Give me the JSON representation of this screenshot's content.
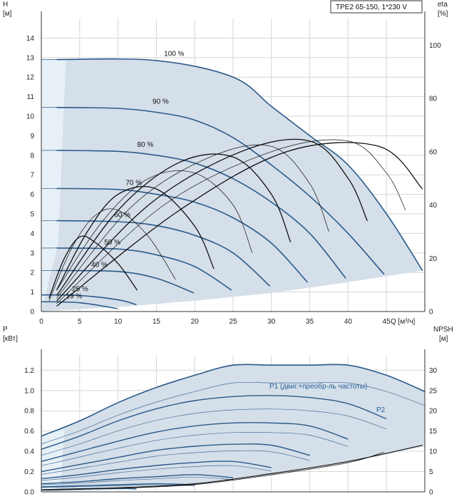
{
  "header": {
    "title": "TPE2 65-150, 1*230 V"
  },
  "colors": {
    "region_fill": "#d5dfe9",
    "region_light": "#e8f0f7",
    "main_curve": "#2a5a8a",
    "thin_curve": "#456f96",
    "eta_curve": "#111111",
    "grid": "#d6d6d6",
    "p_label": "#2a6099"
  },
  "chart_data": [
    {
      "name": "head",
      "type": "line",
      "x_label": "Q [м³/ч]",
      "y_label_top": "H",
      "y_unit": "[м]",
      "y2_label_top": "eta",
      "y2_unit": "[%]",
      "xlim": [
        0,
        50
      ],
      "ylim": [
        0,
        15
      ],
      "y2lim": [
        0,
        110
      ],
      "x_ticks": [
        0,
        5,
        10,
        15,
        20,
        25,
        30,
        35,
        40,
        45
      ],
      "y_ticks": [
        0,
        1,
        2,
        3,
        4,
        5,
        6,
        7,
        8,
        9,
        10,
        11,
        12,
        13,
        14
      ],
      "y2_ticks": [
        0,
        20,
        40,
        60,
        80,
        100
      ],
      "series": [
        {
          "name": "100 %",
          "label": "100 %",
          "x": [
            2,
            15,
            25,
            30,
            35,
            40,
            45,
            49.7
          ],
          "y": [
            12.9,
            12.85,
            12.0,
            10.5,
            9.0,
            7.5,
            5.0,
            2.1
          ]
        },
        {
          "name": "90 %",
          "label": "90 %",
          "x": [
            2,
            10,
            15,
            20,
            25,
            30,
            35,
            40,
            44.7
          ],
          "y": [
            10.45,
            10.4,
            10.2,
            9.8,
            8.9,
            7.5,
            5.9,
            4.0,
            1.9
          ]
        },
        {
          "name": "80 %",
          "label": "80 %",
          "x": [
            2,
            10,
            15,
            20,
            25,
            30,
            35,
            39.7
          ],
          "y": [
            8.25,
            8.2,
            8.0,
            7.6,
            6.8,
            5.6,
            4.0,
            1.7
          ]
        },
        {
          "name": "70 %",
          "label": "70 %",
          "x": [
            2,
            10,
            15,
            20,
            25,
            30,
            34.7
          ],
          "y": [
            6.3,
            6.25,
            6.0,
            5.6,
            4.8,
            3.5,
            1.5
          ]
        },
        {
          "name": "60 %",
          "label": "60 %",
          "x": [
            2,
            10,
            15,
            20,
            25,
            29.8
          ],
          "y": [
            4.65,
            4.6,
            4.4,
            3.9,
            3.0,
            1.3
          ]
        },
        {
          "name": "50 %",
          "label": "50 %",
          "x": [
            2,
            10,
            15,
            20,
            24.8
          ],
          "y": [
            3.25,
            3.2,
            2.9,
            2.3,
            1.1
          ]
        },
        {
          "name": "40 %",
          "label": "40 %",
          "x": [
            2,
            10,
            15,
            19.9
          ],
          "y": [
            2.1,
            2.05,
            1.7,
            0.95
          ]
        },
        {
          "name": "25 %",
          "label": "25 %",
          "x": [
            0,
            5,
            10,
            12.4
          ],
          "y": [
            0.85,
            0.82,
            0.6,
            0.35
          ]
        },
        {
          "name": "19 %",
          "label": "19 %",
          "x": [
            0,
            5,
            9.9
          ],
          "y": [
            0.5,
            0.45,
            0.15
          ]
        }
      ],
      "eta_curves": [
        {
          "x": [
            1,
            3,
            5,
            7,
            10,
            12.5
          ],
          "y": [
            5,
            20,
            28,
            26,
            18,
            8
          ]
        },
        {
          "x": [
            1,
            4,
            7,
            10,
            14,
            17.5
          ],
          "y": [
            4,
            24,
            36,
            38,
            28,
            12
          ]
        },
        {
          "x": [
            2,
            6,
            10,
            15,
            20,
            22.5
          ],
          "y": [
            8,
            30,
            44,
            46,
            32,
            16
          ]
        },
        {
          "x": [
            2,
            8,
            14,
            20,
            25,
            27.5
          ],
          "y": [
            8,
            34,
            50,
            52,
            40,
            22
          ]
        },
        {
          "x": [
            2,
            10,
            18,
            25,
            30,
            32.5
          ],
          "y": [
            6,
            38,
            56,
            58,
            44,
            26
          ]
        },
        {
          "x": [
            2,
            12,
            22,
            30,
            35,
            37.5
          ],
          "y": [
            5,
            40,
            58,
            62,
            48,
            30
          ]
        },
        {
          "x": [
            2,
            14,
            26,
            35,
            40,
            42.5
          ],
          "y": [
            4,
            40,
            60,
            64,
            50,
            34
          ]
        },
        {
          "x": [
            2,
            16,
            30,
            40,
            45,
            47.5
          ],
          "y": [
            3,
            40,
            60,
            64,
            52,
            38
          ]
        },
        {
          "x": [
            2,
            18,
            32,
            44,
            49.7
          ],
          "y": [
            2,
            38,
            60,
            62,
            46
          ]
        }
      ]
    },
    {
      "name": "power",
      "type": "line",
      "y_label_top": "P",
      "y_unit": "[кВт]",
      "y2_label_top": "NPSH",
      "y2_unit": "[м]",
      "xlim": [
        0,
        50
      ],
      "ylim": [
        0,
        1.35
      ],
      "y2lim": [
        0,
        33.75
      ],
      "y_ticks": [
        0.0,
        0.2,
        0.4,
        0.6,
        0.8,
        1.0,
        1.2
      ],
      "y_tick_labels": [
        "0.0",
        "0.2",
        "0.4",
        "0.6",
        "0.8",
        "1.0",
        "1.2"
      ],
      "y2_ticks": [
        0,
        5,
        10,
        15,
        20,
        25,
        30
      ],
      "p1_label": "P1 (двиг.+преобр-ль частоты)",
      "p2_label": "P2",
      "series": [
        {
          "name": "P 100 %",
          "x": [
            0,
            5,
            10,
            15,
            20,
            25,
            30,
            35,
            40,
            45,
            50
          ],
          "y": [
            0.55,
            0.7,
            0.88,
            1.03,
            1.15,
            1.25,
            1.25,
            1.25,
            1.25,
            1.15,
            0.99
          ]
        },
        {
          "name": "P 90 %",
          "x": [
            0,
            5,
            10,
            15,
            20,
            25,
            30,
            35,
            40,
            45
          ],
          "y": [
            0.42,
            0.55,
            0.7,
            0.82,
            0.9,
            0.94,
            0.95,
            0.93,
            0.87,
            0.72
          ]
        },
        {
          "name": "P 80 %",
          "x": [
            0,
            5,
            10,
            15,
            20,
            25,
            30,
            35,
            40
          ],
          "y": [
            0.3,
            0.4,
            0.5,
            0.59,
            0.65,
            0.68,
            0.68,
            0.65,
            0.52
          ]
        },
        {
          "name": "P 70 %",
          "x": [
            0,
            5,
            10,
            15,
            20,
            25,
            30,
            35
          ],
          "y": [
            0.2,
            0.27,
            0.34,
            0.41,
            0.45,
            0.47,
            0.46,
            0.36
          ]
        },
        {
          "name": "P 60 %",
          "x": [
            0,
            5,
            10,
            15,
            20,
            25,
            30
          ],
          "y": [
            0.13,
            0.17,
            0.22,
            0.26,
            0.29,
            0.3,
            0.24
          ]
        },
        {
          "name": "P 50 %",
          "x": [
            0,
            5,
            10,
            15,
            20,
            25
          ],
          "y": [
            0.08,
            0.1,
            0.13,
            0.15,
            0.17,
            0.14
          ]
        },
        {
          "name": "P 40 %",
          "x": [
            0,
            5,
            10,
            15,
            20
          ],
          "y": [
            0.05,
            0.06,
            0.07,
            0.08,
            0.07
          ]
        },
        {
          "name": "P 25 %",
          "x": [
            0,
            5,
            10,
            12.4
          ],
          "y": [
            0.02,
            0.03,
            0.035,
            0.03
          ]
        }
      ],
      "npsh_curves": [
        {
          "x": [
            0,
            10,
            20,
            30,
            40,
            49.7
          ],
          "y": [
            0.5,
            1.0,
            2.0,
            4.5,
            7.5,
            11.5
          ]
        },
        {
          "x": [
            0,
            10,
            20,
            30,
            40,
            44.7
          ],
          "y": [
            0.4,
            0.9,
            1.8,
            4.2,
            7.2,
            9.8
          ]
        }
      ]
    }
  ]
}
